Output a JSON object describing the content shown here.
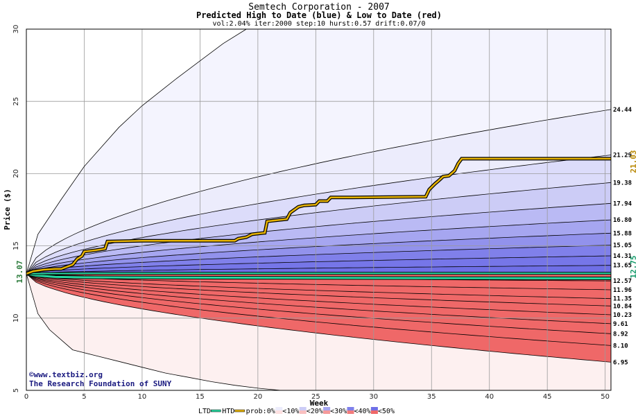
{
  "chart_data": {
    "type": "area",
    "title": "Semtech Corporation - 2007",
    "subtitle": "Predicted High to Date (blue) &  Low to Date (red)",
    "params": "vol:2.04% iter:2000 step:10 hurst:0.57 drift:0.07/0",
    "xlabel": "Week",
    "ylabel": "Price ($)",
    "xlim": [
      0,
      50.5
    ],
    "ylim": [
      5,
      30
    ],
    "xticks": [
      0,
      5,
      10,
      15,
      20,
      25,
      30,
      35,
      40,
      45,
      50
    ],
    "yticks": [
      5,
      10,
      15,
      20,
      25,
      30
    ],
    "start_price": 13.07,
    "start_label": "13.07",
    "end_low_label": "12.75",
    "end_high_label": "21.03",
    "high_band_ends": [
      24.44,
      21.29,
      19.38,
      17.94,
      16.8,
      15.88,
      15.05,
      14.31,
      13.65
    ],
    "low_band_ends": [
      12.57,
      11.96,
      11.35,
      10.84,
      10.23,
      9.61,
      8.92,
      8.1,
      6.95
    ],
    "right_labels": [
      "24.44",
      "21.29",
      "19.38",
      "17.94",
      "16.80",
      "15.88",
      "15.05",
      "14.31",
      "13.65",
      "12.57",
      "11.96",
      "11.35",
      "10.84",
      "10.23",
      "9.61",
      "8.92",
      "8.10",
      "6.95"
    ],
    "high_outer_curve": {
      "x": [
        0,
        1,
        2,
        3,
        5,
        8,
        10,
        13,
        15,
        17,
        19
      ],
      "y": [
        13.07,
        15.8,
        17.0,
        18.2,
        20.5,
        23.2,
        24.7,
        26.6,
        27.8,
        29.0,
        30
      ]
    },
    "low_outer_curve": {
      "x": [
        0,
        1,
        2,
        3,
        4,
        6,
        8,
        10,
        12,
        14,
        16,
        18,
        20,
        22
      ],
      "y": [
        13.07,
        10.3,
        9.2,
        8.5,
        7.8,
        7.4,
        7.0,
        6.6,
        6.2,
        5.9,
        5.6,
        5.35,
        5.15,
        5.0
      ]
    },
    "htd_series": {
      "x": [
        0,
        0.6,
        1.5,
        2.5,
        3,
        4,
        4.4,
        4.8,
        5,
        6,
        6.8,
        7,
        10,
        18,
        18.3,
        19,
        19.5,
        20.6,
        20.8,
        22.5,
        22.8,
        23.5,
        24,
        25,
        25.3,
        26,
        26.3,
        28,
        34.5,
        34.8,
        35.3,
        35.6,
        36,
        36.5,
        37,
        37.3,
        37.6,
        50.5
      ],
      "y": [
        13.07,
        13.25,
        13.35,
        13.4,
        13.4,
        13.7,
        14.1,
        14.3,
        14.6,
        14.7,
        14.8,
        15.3,
        15.35,
        15.35,
        15.5,
        15.6,
        15.8,
        15.9,
        16.7,
        16.85,
        17.3,
        17.7,
        17.8,
        17.85,
        18.1,
        18.1,
        18.35,
        18.35,
        18.4,
        18.9,
        19.3,
        19.5,
        19.8,
        19.85,
        20.2,
        20.7,
        21.03,
        21.03
      ]
    },
    "ltd_series": {
      "x": [
        0,
        0.8,
        2.5,
        5,
        12,
        50.5
      ],
      "y": [
        13.07,
        12.95,
        12.85,
        12.82,
        12.8,
        12.75
      ]
    },
    "htd_prob_series": {
      "x": [
        0,
        5,
        10,
        15,
        20,
        25,
        30,
        35,
        40,
        45,
        50.5
      ],
      "y": [
        13.07,
        13.1,
        13.1,
        13.1,
        13.1,
        13.1,
        13.1,
        13.1,
        13.1,
        13.1,
        13.1
      ]
    },
    "credit_line1": "©www.textbiz.org",
    "credit_line2": "The Research Foundation of SUNY",
    "legend": [
      "LTD",
      "HTD",
      "prob:0%",
      "<10%",
      "<20%",
      "<30%",
      "<40%",
      "<50%"
    ],
    "colors": {
      "high_bands": [
        "#ececfc",
        "#dcdcfa",
        "#ccccf6",
        "#babaf4",
        "#a6a6f0",
        "#9292ec",
        "#8080ea",
        "#7676e8",
        "#6f6fe6"
      ],
      "low_bands": [
        "#fde0e0",
        "#fbd0d0",
        "#f9c0c0",
        "#f7adad",
        "#f59a9a",
        "#f38a8a",
        "#f27c7c",
        "#f07070",
        "#ef6868"
      ],
      "htd_line": "#e8b400",
      "ltd_line": "#28d8a0",
      "start_label": "#2a7a3a",
      "end_high_label": "#b88700",
      "end_low_label": "#149a6a",
      "grid": "#9a9a9a"
    }
  }
}
